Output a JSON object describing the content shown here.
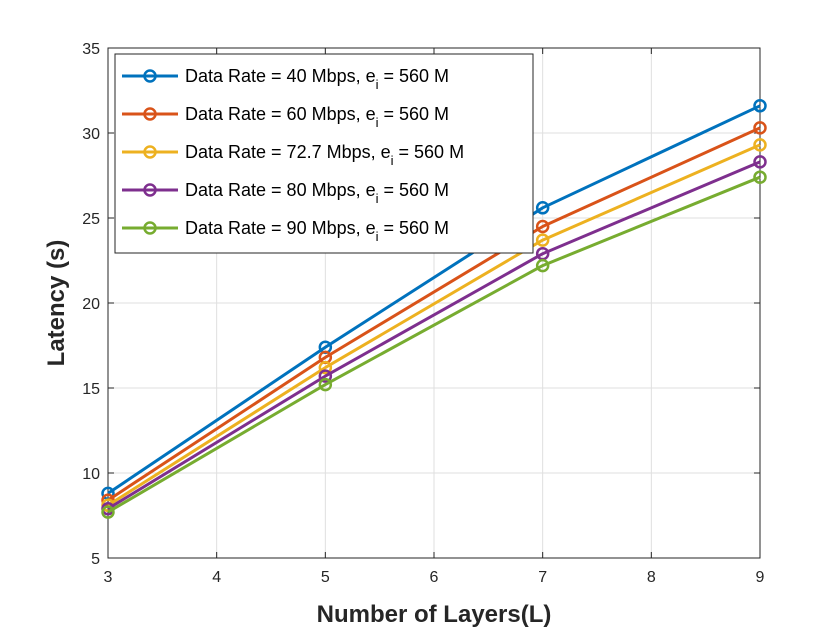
{
  "chart_data": {
    "type": "line",
    "xlabel": "Number of Layers(L)",
    "ylabel": "Latency (s)",
    "x": [
      3,
      5,
      7,
      9
    ],
    "xlim": [
      3,
      9
    ],
    "ylim": [
      5,
      35
    ],
    "xticks": [
      "3",
      "4",
      "5",
      "6",
      "7",
      "8",
      "9"
    ],
    "yticks": [
      "5",
      "10",
      "15",
      "20",
      "25",
      "30",
      "35"
    ],
    "grid": true,
    "legend_position": "top-left",
    "series": [
      {
        "name": "Data Rate = 40 Mbps, e",
        "subscript": "i",
        "suffix": " = 560 M",
        "color": "#0072BD",
        "values": [
          8.8,
          17.4,
          25.6,
          31.6
        ]
      },
      {
        "name": "Data Rate = 60 Mbps, e",
        "subscript": "i",
        "suffix": " = 560 M",
        "color": "#D95319",
        "values": [
          8.4,
          16.8,
          24.5,
          30.3
        ]
      },
      {
        "name": "Data Rate = 72.7 Mbps, e",
        "subscript": "i",
        "suffix": " = 560 M",
        "color": "#EDB120",
        "values": [
          8.1,
          16.2,
          23.7,
          29.3
        ]
      },
      {
        "name": "Data Rate = 80 Mbps, e",
        "subscript": "i",
        "suffix": " = 560 M",
        "color": "#7E2F8E",
        "values": [
          7.9,
          15.7,
          22.9,
          28.3
        ]
      },
      {
        "name": "Data Rate = 90 Mbps, e",
        "subscript": "i",
        "suffix": " = 560 M",
        "color": "#77AC30",
        "values": [
          7.7,
          15.2,
          22.2,
          27.4
        ]
      }
    ]
  }
}
